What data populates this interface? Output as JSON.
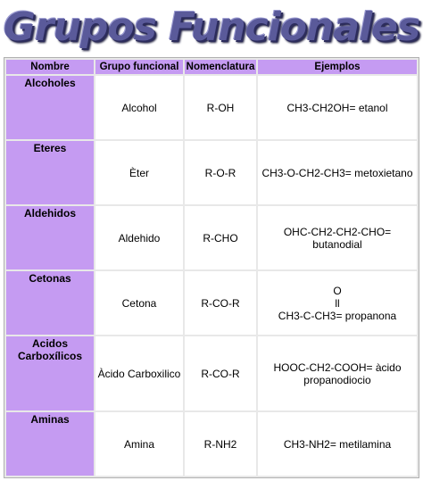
{
  "title": "Grupos Funcionales",
  "colors": {
    "header_bg": "#c59bf2",
    "title_color": "#5a5a9a"
  },
  "headers": [
    "Nombre",
    "Grupo funcional",
    "Nomenclatura",
    "Ejemplos"
  ],
  "rows": [
    {
      "nombre": "Alcoholes",
      "grupo": "Alcohol",
      "nomenclatura": "R-OH",
      "ejemplo": "CH3-CH2OH= etanol"
    },
    {
      "nombre": "Eteres",
      "grupo": "Èter",
      "nomenclatura": "R-O-R",
      "ejemplo": "CH3-O-CH2-CH3= metoxietano"
    },
    {
      "nombre": "Aldehidos",
      "grupo": "Aldehido",
      "nomenclatura": "R-CHO",
      "ejemplo_line1": "OHC-CH2-CH2-CHO=",
      "ejemplo_line2": "butanodial"
    },
    {
      "nombre": "Cetonas",
      "grupo": "Cetona",
      "nomenclatura": "R-CO-R",
      "ejemplo_line1": "O",
      "ejemplo_line2": "ll",
      "ejemplo_line3": "CH3-C-CH3= propanona"
    },
    {
      "nombre_line1": "Acidos",
      "nombre_line2": "Carboxílicos",
      "grupo": "Àcido Carboxilico",
      "nomenclatura": "R-CO-R",
      "ejemplo_line1": "HOOC-CH2-COOH= àcido",
      "ejemplo_line2": "propanodiocio"
    },
    {
      "nombre": "Aminas",
      "grupo": "Amina",
      "nomenclatura": "R-NH2",
      "ejemplo": "CH3-NH2= metilamina"
    }
  ]
}
